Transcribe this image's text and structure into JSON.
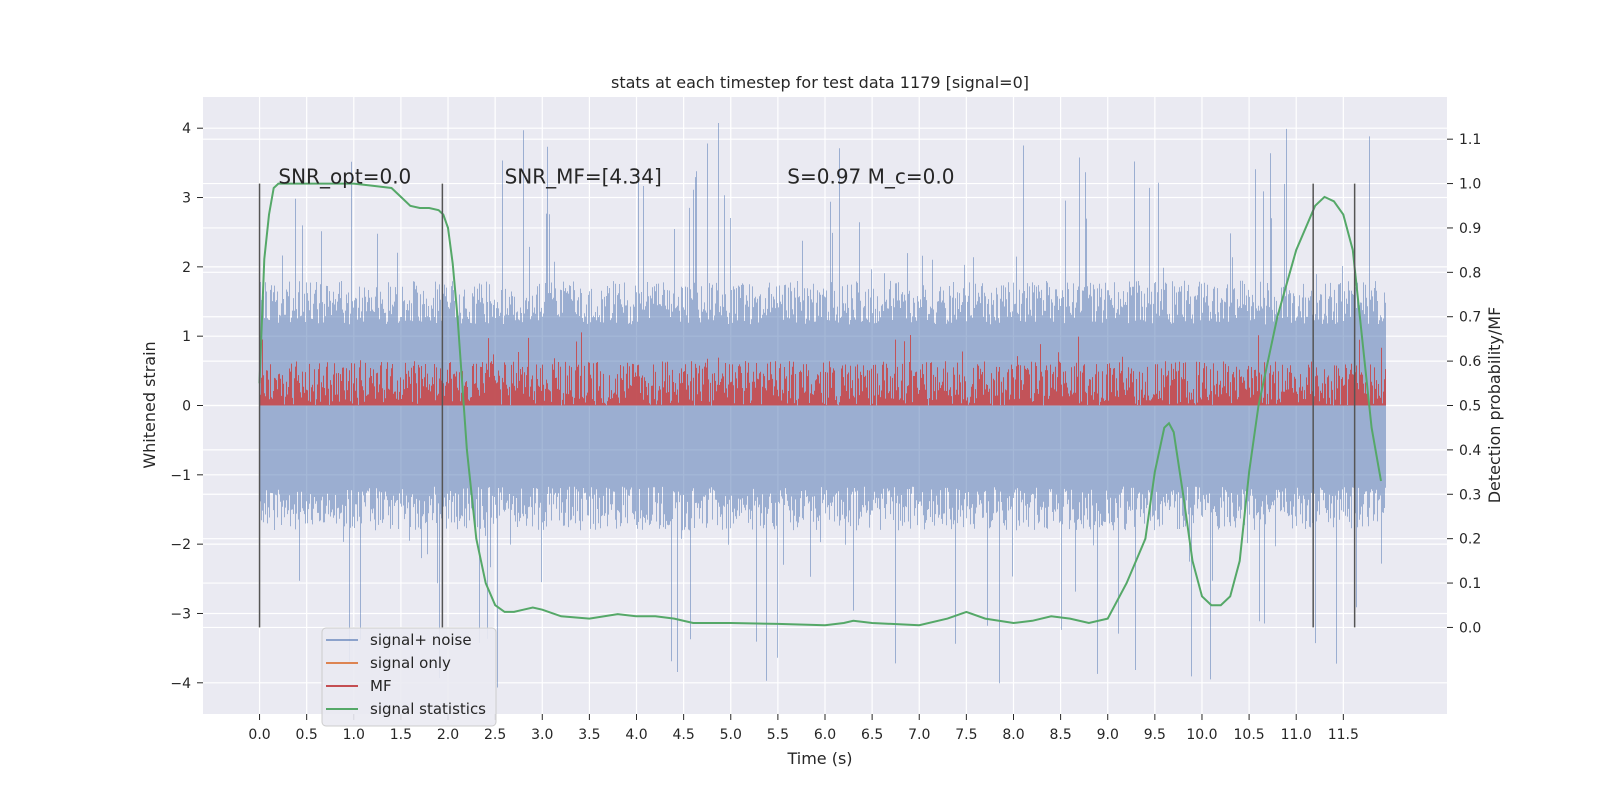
{
  "chart_data": {
    "type": "line",
    "title": "stats at each timestep for test data 1179 [signal=0]",
    "xlabel": "Time (s)",
    "ylabel_left": "Whitened strain",
    "ylabel_right": "Detection probability/MF",
    "xlim": [
      -0.6,
      12.6
    ],
    "ylim_left": [
      -4.45,
      4.45
    ],
    "ylim_right": [
      -0.195,
      1.195
    ],
    "x_ticks": [
      0.0,
      0.5,
      1.0,
      1.5,
      2.0,
      2.5,
      3.0,
      3.5,
      4.0,
      4.5,
      5.0,
      5.5,
      6.0,
      6.5,
      7.0,
      7.5,
      8.0,
      8.5,
      9.0,
      9.5,
      10.0,
      10.5,
      11.0,
      11.5
    ],
    "x_tick_labels": [
      "0.0",
      "0.5",
      "1.0",
      "1.5",
      "2.0",
      "2.5",
      "3.0",
      "3.5",
      "4.0",
      "4.5",
      "5.0",
      "5.5",
      "6.0",
      "6.5",
      "7.0",
      "7.5",
      "8.0",
      "8.5",
      "9.0",
      "9.5",
      "10.0",
      "10.5",
      "11.0",
      "11.5"
    ],
    "y_ticks_left": [
      4,
      3,
      2,
      1,
      0,
      -1,
      -2,
      -3,
      -4
    ],
    "y_tick_labels_left": [
      "4",
      "3",
      "2",
      "1",
      "0",
      "−1",
      "−2",
      "−3",
      "−4"
    ],
    "y_ticks_right": [
      1.1,
      1.0,
      0.9,
      0.8,
      0.7,
      0.6,
      0.5,
      0.4,
      0.3,
      0.2,
      0.1,
      0.0
    ],
    "y_tick_labels_right": [
      "1.1",
      "1.0",
      "0.9",
      "0.8",
      "0.7",
      "0.6",
      "0.5",
      "0.4",
      "0.3",
      "0.2",
      "0.1",
      "0.0"
    ],
    "grid": true,
    "legend_position": "lower-left",
    "annotations": [
      {
        "text": "SNR_opt=0.0",
        "x": 0.2,
        "y": 3.2
      },
      {
        "text": "SNR_MF=[4.34]",
        "x": 2.6,
        "y": 3.2
      },
      {
        "text": "S=0.97   M_c=0.0",
        "x": 5.6,
        "y": 3.2
      }
    ],
    "vertical_markers": {
      "x": [
        0.0,
        1.94,
        11.18,
        11.62
      ],
      "y_range": [
        -3.2,
        3.2
      ],
      "color": "#555555"
    },
    "series": [
      {
        "name": "signal+ noise",
        "color": "#4c72b0",
        "kind": "noise_band",
        "x_range": [
          0.0,
          11.95
        ],
        "typical_range": [
          -1.8,
          1.8
        ],
        "extreme_range": [
          -4.1,
          4.1
        ]
      },
      {
        "name": "signal only",
        "color": "#dd8452",
        "kind": "line",
        "x": [],
        "y": []
      },
      {
        "name": "MF",
        "color": "#c44e52",
        "kind": "noise_band",
        "axis": "right",
        "x_range": [
          0.0,
          11.95
        ],
        "typical_range": [
          0.5,
          0.6
        ],
        "extreme_range": [
          0.5,
          0.67
        ]
      },
      {
        "name": "signal statistics",
        "color": "#55a868",
        "kind": "line",
        "axis": "right",
        "x": [
          0.0,
          0.05,
          0.1,
          0.15,
          0.2,
          0.3,
          0.5,
          0.8,
          1.0,
          1.2,
          1.4,
          1.5,
          1.6,
          1.7,
          1.8,
          1.9,
          1.95,
          2.0,
          2.05,
          2.1,
          2.15,
          2.2,
          2.3,
          2.4,
          2.5,
          2.6,
          2.7,
          2.8,
          2.9,
          3.0,
          3.2,
          3.5,
          3.8,
          4.0,
          4.2,
          4.4,
          4.6,
          5.0,
          5.5,
          6.0,
          6.2,
          6.3,
          6.5,
          7.0,
          7.3,
          7.5,
          7.7,
          8.0,
          8.2,
          8.4,
          8.6,
          8.8,
          9.0,
          9.2,
          9.4,
          9.5,
          9.6,
          9.65,
          9.7,
          9.8,
          9.9,
          10.0,
          10.1,
          10.2,
          10.3,
          10.4,
          10.5,
          10.6,
          10.8,
          11.0,
          11.2,
          11.3,
          11.4,
          11.5,
          11.6,
          11.7,
          11.8,
          11.9
        ],
        "y": [
          0.55,
          0.83,
          0.93,
          0.99,
          1.0,
          1.0,
          1.0,
          1.0,
          1.0,
          0.995,
          0.99,
          0.97,
          0.95,
          0.945,
          0.945,
          0.94,
          0.93,
          0.9,
          0.82,
          0.7,
          0.55,
          0.4,
          0.2,
          0.1,
          0.05,
          0.035,
          0.035,
          0.04,
          0.045,
          0.04,
          0.025,
          0.02,
          0.03,
          0.025,
          0.025,
          0.02,
          0.01,
          0.01,
          0.008,
          0.005,
          0.01,
          0.015,
          0.01,
          0.005,
          0.02,
          0.035,
          0.02,
          0.01,
          0.015,
          0.025,
          0.02,
          0.01,
          0.02,
          0.1,
          0.2,
          0.35,
          0.45,
          0.46,
          0.44,
          0.3,
          0.15,
          0.07,
          0.05,
          0.05,
          0.07,
          0.15,
          0.35,
          0.5,
          0.7,
          0.85,
          0.95,
          0.97,
          0.96,
          0.93,
          0.85,
          0.65,
          0.45,
          0.33
        ]
      }
    ]
  }
}
